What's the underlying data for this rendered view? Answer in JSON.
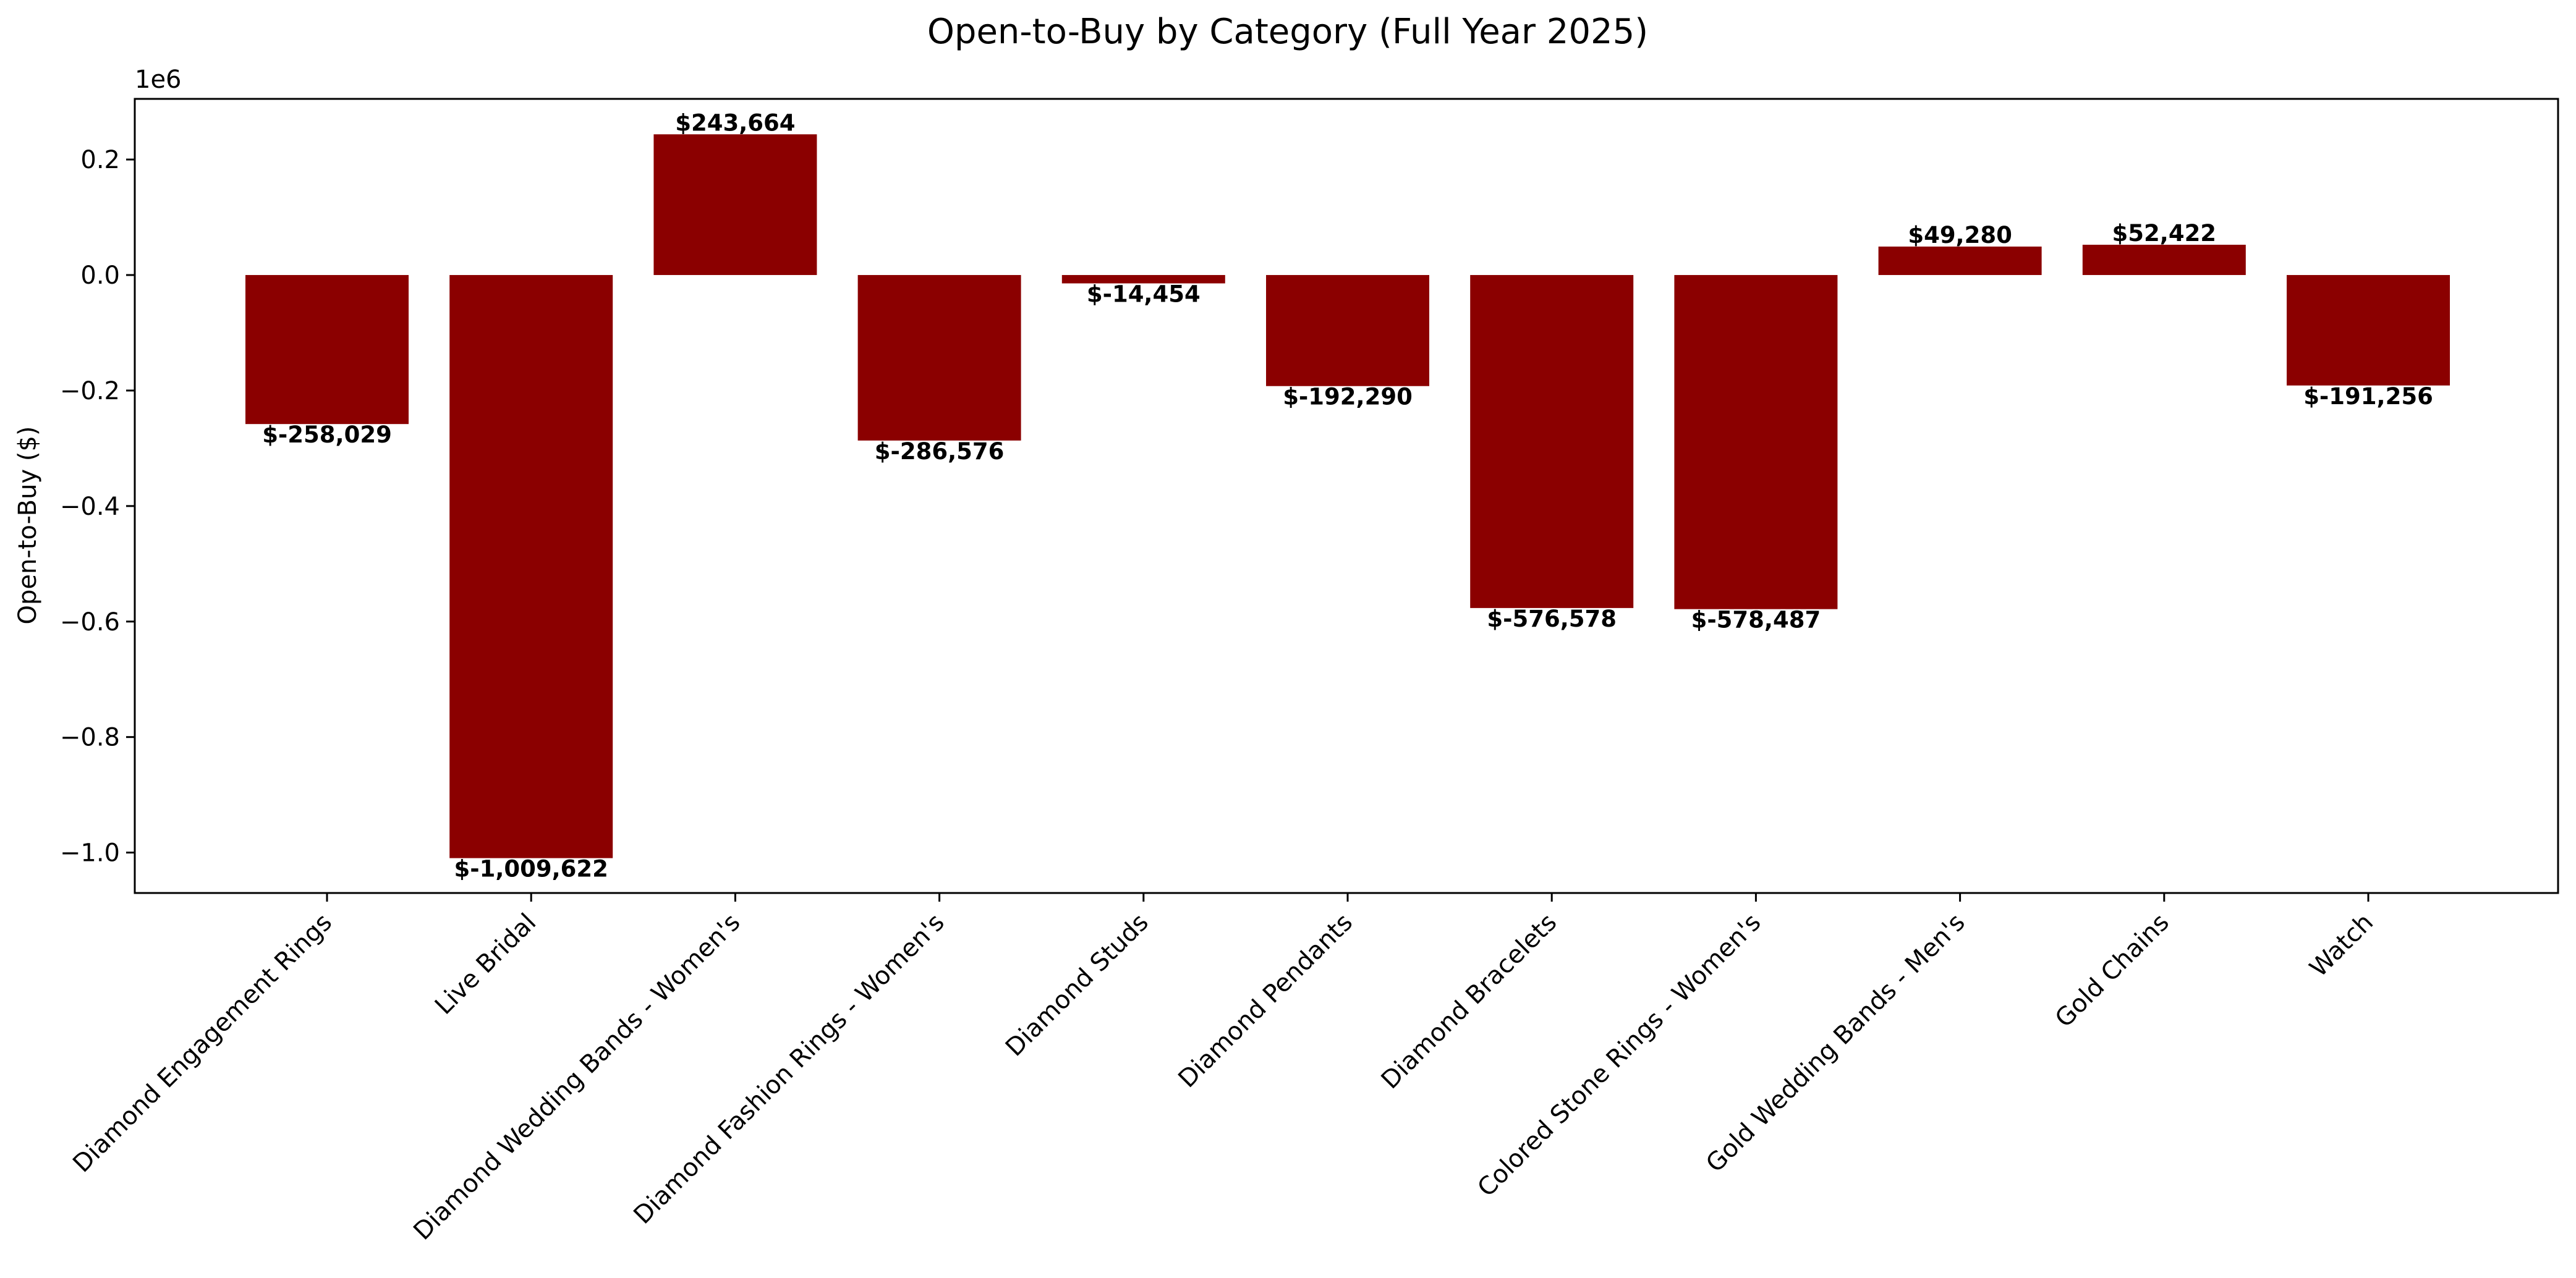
{
  "chart_data": {
    "type": "bar",
    "title": "Open-to-Buy by Category (Full Year 2025)",
    "xlabel": "",
    "ylabel": "Open-to-Buy ($)",
    "y_scale_label": "1e6",
    "y_tick_values": [
      0.2,
      0.0,
      -0.2,
      -0.4,
      -0.6,
      -0.8,
      -1.0
    ],
    "y_tick_labels": [
      "0.2",
      "0.0",
      "−0.2",
      "−0.4",
      "−0.6",
      "−0.8",
      "−1.0"
    ],
    "ylim": [
      -1070000,
      305000
    ],
    "bar_color": "#8b0000",
    "grid": false,
    "categories": [
      "Diamond Engagement Rings",
      "Live Bridal",
      "Diamond Wedding Bands - Women's",
      "Diamond Fashion Rings - Women's",
      "Diamond Studs",
      "Diamond Pendants",
      "Diamond Bracelets",
      "Colored Stone Rings - Women's",
      "Gold Wedding Bands - Men's",
      "Gold Chains",
      "Watch"
    ],
    "values": [
      -258029,
      -1009622,
      243664,
      -286576,
      -14454,
      -192290,
      -576578,
      -578487,
      49280,
      52422,
      -191256
    ],
    "data_labels": [
      "$-258,029",
      "$-1,009,622",
      "$243,664",
      "$-286,576",
      "$-14,454",
      "$-192,290",
      "$-576,578",
      "$-578,487",
      "$49,280",
      "$52,422",
      "$-191,256"
    ]
  }
}
